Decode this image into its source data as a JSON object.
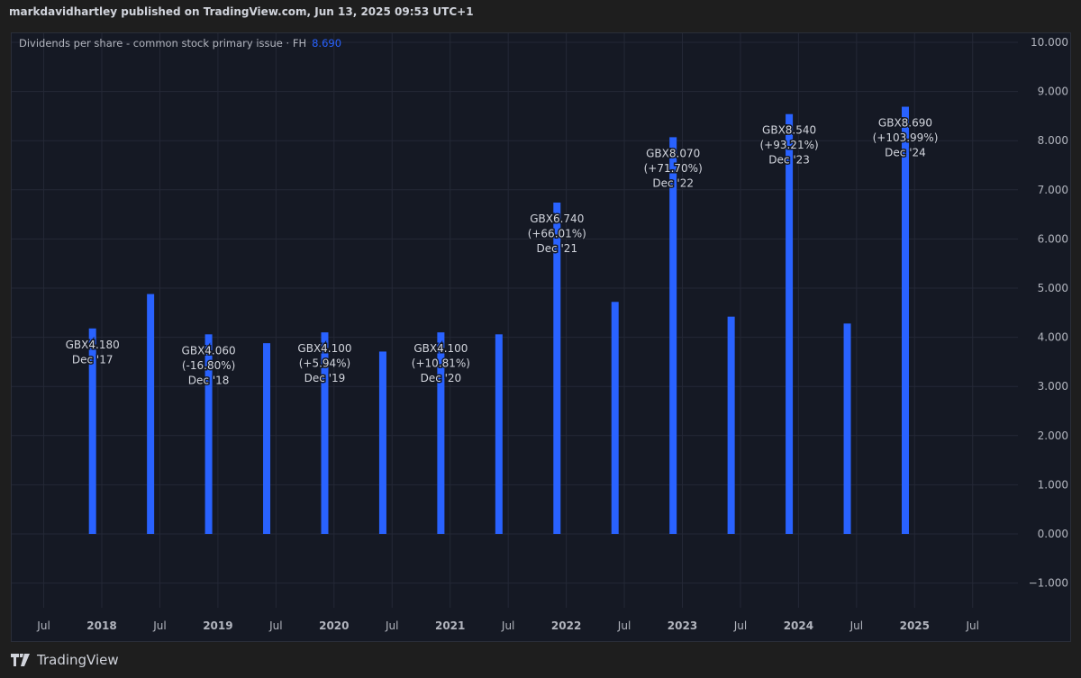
{
  "header": {
    "text": "markdavidhartley published on TradingView.com, Jun 13, 2025 09:53 UTC+1"
  },
  "legend": {
    "label": "Dividends per share - common stock primary issue · FH",
    "value": "8.690"
  },
  "brand": {
    "name": "TradingView"
  },
  "colors": {
    "bar": "#2962ff",
    "background": "#151924",
    "grid": "#242836",
    "text": "#b2b5be"
  },
  "chart_data": {
    "type": "bar",
    "title": "Dividends per share - common stock primary issue · FH",
    "ylim": [
      -1.2,
      10.2
    ],
    "yticks": [
      10,
      9,
      8,
      7,
      6,
      5,
      4,
      3,
      2,
      1,
      0,
      -1
    ],
    "ytick_labels": [
      "10.000",
      "9.000",
      "8.000",
      "7.000",
      "6.000",
      "5.000",
      "4.000",
      "3.000",
      "2.000",
      "1.000",
      "0.000",
      "−1.000"
    ],
    "xticks": [
      {
        "label": "Jul",
        "t": 2017.5,
        "bold": false
      },
      {
        "label": "2018",
        "t": 2018.0,
        "bold": true
      },
      {
        "label": "Jul",
        "t": 2018.5,
        "bold": false
      },
      {
        "label": "2019",
        "t": 2019.0,
        "bold": true
      },
      {
        "label": "Jul",
        "t": 2019.5,
        "bold": false
      },
      {
        "label": "2020",
        "t": 2020.0,
        "bold": true
      },
      {
        "label": "Jul",
        "t": 2020.5,
        "bold": false
      },
      {
        "label": "2021",
        "t": 2021.0,
        "bold": true
      },
      {
        "label": "Jul",
        "t": 2021.5,
        "bold": false
      },
      {
        "label": "2022",
        "t": 2022.0,
        "bold": true
      },
      {
        "label": "Jul",
        "t": 2022.5,
        "bold": false
      },
      {
        "label": "2023",
        "t": 2023.0,
        "bold": true
      },
      {
        "label": "Jul",
        "t": 2023.5,
        "bold": false
      },
      {
        "label": "2024",
        "t": 2024.0,
        "bold": true
      },
      {
        "label": "Jul",
        "t": 2024.5,
        "bold": false
      },
      {
        "label": "2025",
        "t": 2025.0,
        "bold": true
      },
      {
        "label": "Jul",
        "t": 2025.5,
        "bold": false
      }
    ],
    "bars": [
      {
        "t": 2017.92,
        "value": 4.18,
        "annotation": [
          "GBX4.180",
          "Dec '17"
        ]
      },
      {
        "t": 2018.42,
        "value": 4.88
      },
      {
        "t": 2018.92,
        "value": 4.06,
        "annotation": [
          "GBX4.060",
          "(-16.80%)",
          "Dec '18"
        ]
      },
      {
        "t": 2019.42,
        "value": 3.88
      },
      {
        "t": 2019.92,
        "value": 4.1,
        "annotation": [
          "GBX4.100",
          "(+5.94%)",
          "Dec '19"
        ]
      },
      {
        "t": 2020.42,
        "value": 3.71
      },
      {
        "t": 2020.92,
        "value": 4.1,
        "annotation": [
          "GBX4.100",
          "(+10.81%)",
          "Dec '20"
        ]
      },
      {
        "t": 2021.42,
        "value": 4.06
      },
      {
        "t": 2021.92,
        "value": 6.74,
        "annotation": [
          "GBX6.740",
          "(+66.01%)",
          "Dec '21"
        ]
      },
      {
        "t": 2022.42,
        "value": 4.72
      },
      {
        "t": 2022.92,
        "value": 8.07,
        "annotation": [
          "GBX8.070",
          "(+71.70%)",
          "Dec '22"
        ]
      },
      {
        "t": 2023.42,
        "value": 4.42
      },
      {
        "t": 2023.92,
        "value": 8.54,
        "annotation": [
          "GBX8.540",
          "(+93.21%)",
          "Dec '23"
        ]
      },
      {
        "t": 2024.42,
        "value": 4.28
      },
      {
        "t": 2024.92,
        "value": 8.69,
        "annotation": [
          "GBX8.690",
          "(+103.99%)",
          "Dec '24"
        ]
      }
    ]
  }
}
